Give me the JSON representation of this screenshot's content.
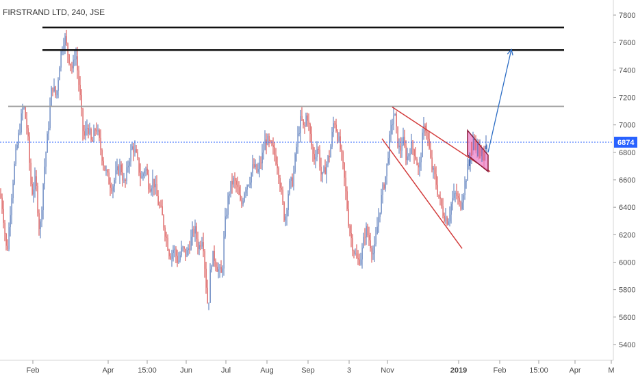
{
  "chart_data": {
    "type": "candlestick",
    "title": "FIRSTRAND LTD, 240, JSE",
    "y_ticks": [
      5400,
      5600,
      5800,
      6000,
      6200,
      6400,
      6600,
      6800,
      7000,
      7200,
      7400,
      7600,
      7800
    ],
    "ylim": [
      5350,
      7850
    ],
    "x_ticks": [
      "Feb",
      "Apr",
      "15:00",
      "Jun",
      "Jul",
      "Aug",
      "Sep",
      "3",
      "Nov",
      "2019",
      "Feb",
      "15:00",
      "Apr",
      "M"
    ],
    "x_tick_bold": [
      false,
      false,
      false,
      false,
      false,
      false,
      false,
      false,
      false,
      true,
      false,
      false,
      false,
      false
    ],
    "last_price": 6874,
    "last_price_label": "6874",
    "colors": {
      "up": "#4a6fb5",
      "down": "#d64141",
      "last_price_line": "#2962ff",
      "resistance": "#111111",
      "support": "#9e9e9e",
      "wedge": "#d23b3b",
      "flag_fill": "#ee82c8",
      "projection": "#2b6cc4"
    },
    "levels": [
      {
        "name": "resistance-upper",
        "price": 7710,
        "style": "resistance"
      },
      {
        "name": "resistance-lower",
        "price": 7545,
        "style": "resistance"
      },
      {
        "name": "support-mid",
        "price": 7135,
        "style": "support"
      }
    ],
    "series": [
      {
        "name": "price",
        "points": [
          [
            0,
            6500
          ],
          [
            4,
            6380
          ],
          [
            10,
            6050
          ],
          [
            16,
            6450
          ],
          [
            22,
            6750
          ],
          [
            28,
            6950
          ],
          [
            34,
            7150
          ],
          [
            40,
            6950
          ],
          [
            46,
            6500
          ],
          [
            52,
            6600
          ],
          [
            58,
            6200
          ],
          [
            64,
            6650
          ],
          [
            70,
            6950
          ],
          [
            76,
            7300
          ],
          [
            82,
            7200
          ],
          [
            88,
            7500
          ],
          [
            94,
            7650
          ],
          [
            100,
            7500
          ],
          [
            106,
            7400
          ],
          [
            110,
            7550
          ],
          [
            116,
            7250
          ],
          [
            122,
            6900
          ],
          [
            128,
            7000
          ],
          [
            134,
            6850
          ],
          [
            140,
            7000
          ],
          [
            146,
            6850
          ],
          [
            152,
            6700
          ],
          [
            158,
            6600
          ],
          [
            164,
            6550
          ],
          [
            170,
            6650
          ],
          [
            176,
            6700
          ],
          [
            182,
            6550
          ],
          [
            188,
            6750
          ],
          [
            194,
            6850
          ],
          [
            200,
            6750
          ],
          [
            206,
            6600
          ],
          [
            212,
            6700
          ],
          [
            218,
            6550
          ],
          [
            224,
            6600
          ],
          [
            230,
            6450
          ],
          [
            236,
            6350
          ],
          [
            242,
            6200
          ],
          [
            248,
            6050
          ],
          [
            254,
            6100
          ],
          [
            260,
            6000
          ],
          [
            266,
            6100
          ],
          [
            272,
            6050
          ],
          [
            278,
            6150
          ],
          [
            284,
            6250
          ],
          [
            290,
            6100
          ],
          [
            296,
            6200
          ],
          [
            300,
            5900
          ],
          [
            304,
            5650
          ],
          [
            308,
            6000
          ],
          [
            312,
            6050
          ],
          [
            318,
            5950
          ],
          [
            324,
            5900
          ],
          [
            328,
            6250
          ],
          [
            334,
            6500
          ],
          [
            340,
            6600
          ],
          [
            346,
            6550
          ],
          [
            352,
            6400
          ],
          [
            358,
            6550
          ],
          [
            364,
            6600
          ],
          [
            370,
            6700
          ],
          [
            376,
            6650
          ],
          [
            382,
            6750
          ],
          [
            388,
            6900
          ],
          [
            394,
            6850
          ],
          [
            400,
            6800
          ],
          [
            406,
            6700
          ],
          [
            412,
            6450
          ],
          [
            416,
            6300
          ],
          [
            422,
            6550
          ],
          [
            428,
            6600
          ],
          [
            432,
            6800
          ],
          [
            436,
            6950
          ],
          [
            440,
            7050
          ],
          [
            444,
            6950
          ],
          [
            448,
            7100
          ],
          [
            452,
            6950
          ],
          [
            458,
            6750
          ],
          [
            464,
            6850
          ],
          [
            470,
            6600
          ],
          [
            476,
            6700
          ],
          [
            482,
            6800
          ],
          [
            488,
            7050
          ],
          [
            494,
            6900
          ],
          [
            498,
            6800
          ],
          [
            502,
            6650
          ],
          [
            506,
            6450
          ],
          [
            510,
            6250
          ],
          [
            516,
            6100
          ],
          [
            522,
            6000
          ],
          [
            528,
            6050
          ],
          [
            534,
            6250
          ],
          [
            540,
            6150
          ],
          [
            546,
            6050
          ],
          [
            552,
            6300
          ],
          [
            558,
            6500
          ],
          [
            564,
            6650
          ],
          [
            568,
            6850
          ],
          [
            572,
            7000
          ],
          [
            576,
            7100
          ],
          [
            580,
            6900
          ],
          [
            584,
            6800
          ],
          [
            588,
            6900
          ],
          [
            594,
            6750
          ],
          [
            600,
            6850
          ],
          [
            606,
            6800
          ],
          [
            612,
            6650
          ],
          [
            618,
            6950
          ],
          [
            622,
            7000
          ],
          [
            626,
            6850
          ],
          [
            630,
            6700
          ],
          [
            636,
            6600
          ],
          [
            642,
            6450
          ],
          [
            648,
            6350
          ],
          [
            654,
            6300
          ],
          [
            660,
            6450
          ],
          [
            666,
            6500
          ],
          [
            672,
            6400
          ],
          [
            678,
            6550
          ],
          [
            684,
            6700
          ],
          [
            690,
            6850
          ],
          [
            694,
            6880
          ],
          [
            698,
            6820
          ],
          [
            702,
            6800
          ],
          [
            706,
            6760
          ],
          [
            710,
            6874
          ]
        ]
      }
    ],
    "annotations": [
      {
        "name": "falling-wedge-upper",
        "kind": "line",
        "points": [
          [
            573,
            7130
          ],
          [
            716,
            6660
          ]
        ]
      },
      {
        "name": "falling-wedge-lower",
        "kind": "line",
        "points": [
          [
            558,
            6900
          ],
          [
            675,
            6100
          ]
        ]
      },
      {
        "name": "bull-flag",
        "kind": "polygon",
        "points": [
          [
            683,
            6960
          ],
          [
            713,
            6780
          ],
          [
            713,
            6660
          ],
          [
            683,
            6780
          ]
        ]
      },
      {
        "name": "projection-arrow",
        "kind": "arrow",
        "points": [
          [
            713,
            6800
          ],
          [
            747,
            7550
          ]
        ]
      }
    ]
  }
}
